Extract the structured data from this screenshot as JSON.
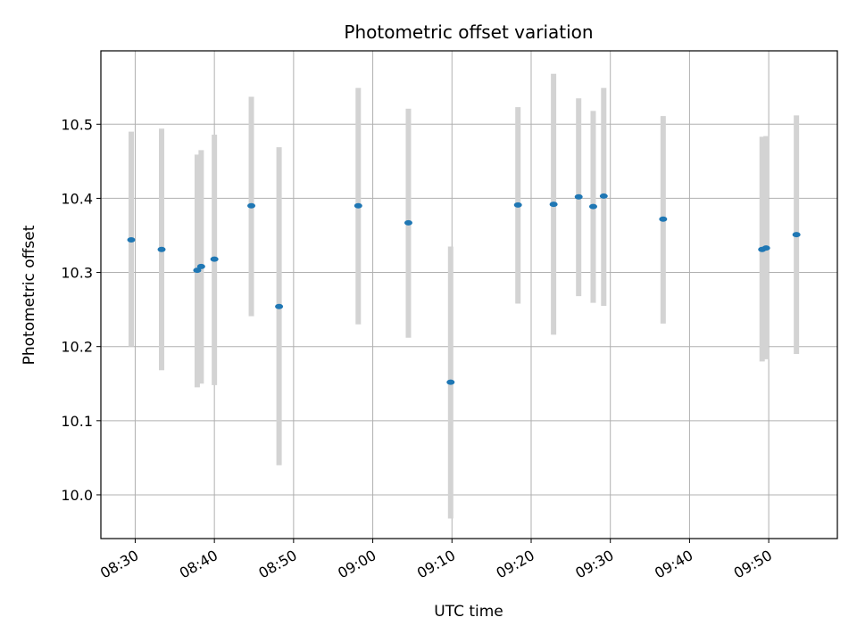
{
  "chart_data": {
    "type": "scatter",
    "title": "Photometric offset variation",
    "xlabel": "UTC time",
    "ylabel": "Photometric offset",
    "x_type": "time",
    "xlim": [
      "08:25:40",
      "09:58:40"
    ],
    "ylim": [
      9.941,
      10.599
    ],
    "x_ticks": [
      "08:30",
      "08:40",
      "08:50",
      "09:00",
      "09:10",
      "09:20",
      "09:30",
      "09:40",
      "09:50"
    ],
    "y_ticks": [
      "10.0",
      "10.1",
      "10.2",
      "10.3",
      "10.4",
      "10.5"
    ],
    "grid": true,
    "legend": false,
    "marker_color": "#1f77b4",
    "errorbar_color": "#d3d3d3",
    "points": [
      {
        "x": "08:29:30",
        "y": 10.344,
        "err_low": 10.2,
        "err_high": 10.49
      },
      {
        "x": "08:33:20",
        "y": 10.331,
        "err_low": 10.168,
        "err_high": 10.494
      },
      {
        "x": "08:37:50",
        "y": 10.303,
        "err_low": 10.145,
        "err_high": 10.459
      },
      {
        "x": "08:38:20",
        "y": 10.308,
        "err_low": 10.15,
        "err_high": 10.465
      },
      {
        "x": "08:40:00",
        "y": 10.318,
        "err_low": 10.148,
        "err_high": 10.486
      },
      {
        "x": "08:44:40",
        "y": 10.39,
        "err_low": 10.241,
        "err_high": 10.537
      },
      {
        "x": "08:48:10",
        "y": 10.254,
        "err_low": 10.04,
        "err_high": 10.469
      },
      {
        "x": "08:58:10",
        "y": 10.39,
        "err_low": 10.23,
        "err_high": 10.549
      },
      {
        "x": "09:04:30",
        "y": 10.367,
        "err_low": 10.212,
        "err_high": 10.521
      },
      {
        "x": "09:09:50",
        "y": 10.152,
        "err_low": 9.968,
        "err_high": 10.335
      },
      {
        "x": "09:18:20",
        "y": 10.391,
        "err_low": 10.258,
        "err_high": 10.523
      },
      {
        "x": "09:22:50",
        "y": 10.392,
        "err_low": 10.216,
        "err_high": 10.568
      },
      {
        "x": "09:26:00",
        "y": 10.402,
        "err_low": 10.268,
        "err_high": 10.535
      },
      {
        "x": "09:27:50",
        "y": 10.389,
        "err_low": 10.259,
        "err_high": 10.518
      },
      {
        "x": "09:29:10",
        "y": 10.403,
        "err_low": 10.255,
        "err_high": 10.549
      },
      {
        "x": "09:36:40",
        "y": 10.372,
        "err_low": 10.231,
        "err_high": 10.511
      },
      {
        "x": "09:49:10",
        "y": 10.331,
        "err_low": 10.18,
        "err_high": 10.483
      },
      {
        "x": "09:49:40",
        "y": 10.333,
        "err_low": 10.183,
        "err_high": 10.484
      },
      {
        "x": "09:53:30",
        "y": 10.351,
        "err_low": 10.19,
        "err_high": 10.512
      }
    ]
  }
}
